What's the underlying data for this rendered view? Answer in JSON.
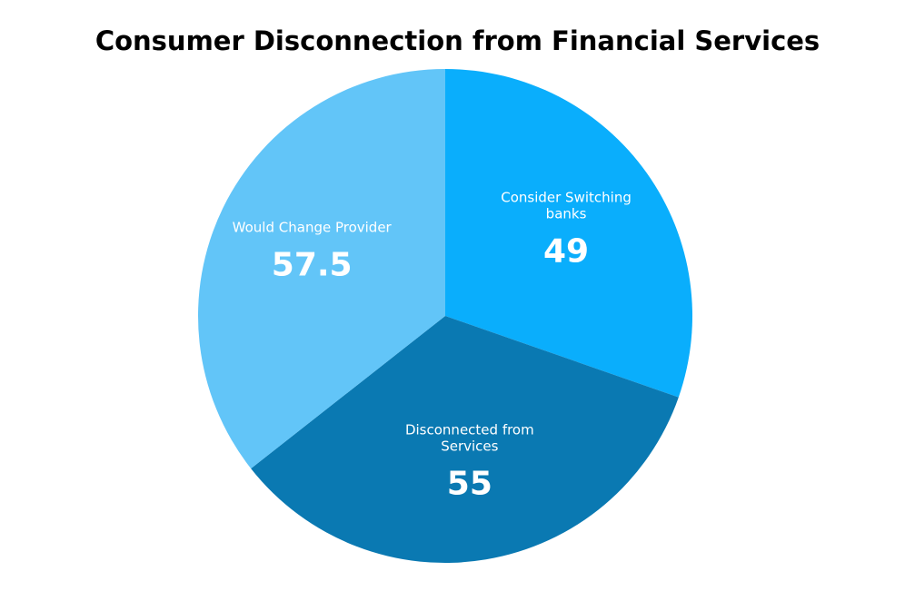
{
  "chart_data": {
    "type": "pie",
    "title": "Consumer Disconnection from Financial Services",
    "categories": [
      "Consider Switching banks",
      "Disconnected from Services",
      "Would Change Provider"
    ],
    "values": [
      49,
      55,
      57.5
    ],
    "colors": [
      "#0aaefc",
      "#0a79b2",
      "#62c5f8"
    ]
  }
}
